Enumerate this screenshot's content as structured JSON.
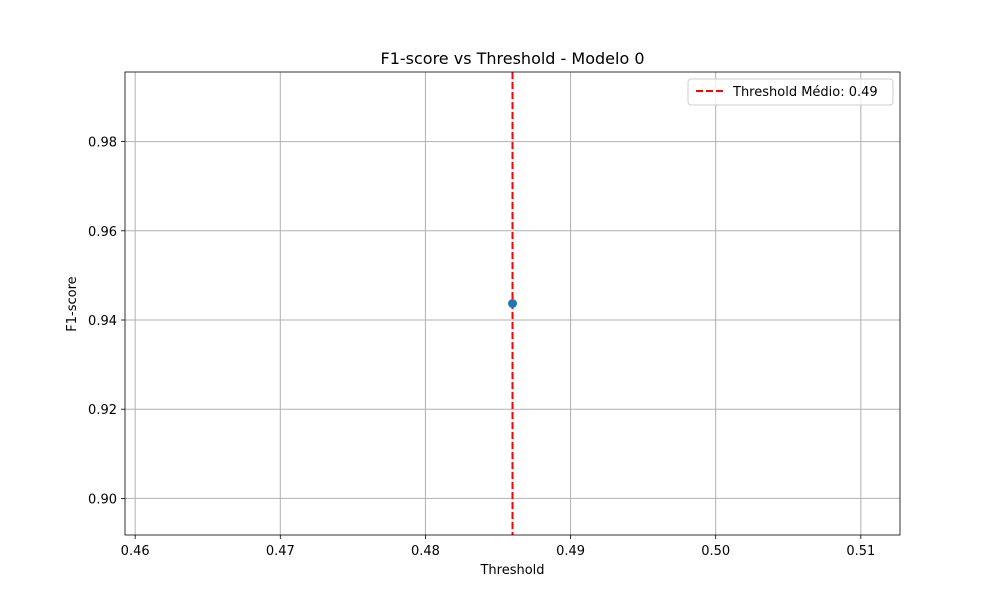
{
  "chart_data": {
    "type": "scatter",
    "title": "F1-score vs Threshold - Modelo 0",
    "xlabel": "Threshold",
    "ylabel": "F1-score",
    "xlim": [
      0.4593,
      0.5127
    ],
    "ylim": [
      0.8918,
      0.9956
    ],
    "xticks": [
      0.46,
      0.47,
      0.48,
      0.49,
      0.5,
      0.51
    ],
    "xtick_labels": [
      "0.46",
      "0.47",
      "0.48",
      "0.49",
      "0.50",
      "0.51"
    ],
    "yticks": [
      0.9,
      0.92,
      0.94,
      0.96,
      0.98
    ],
    "ytick_labels": [
      "0.90",
      "0.92",
      "0.94",
      "0.96",
      "0.98"
    ],
    "grid": true,
    "series": [
      {
        "points": [
          {
            "x": 0.486,
            "y": 0.9437
          }
        ],
        "color": "#1f77b4"
      }
    ],
    "vline": {
      "x": 0.486,
      "color": "#ff0000",
      "style": "dashed",
      "label": "Threshold Médio: 0.49"
    },
    "legend": {
      "position": "top-right",
      "entries": [
        "Threshold Médio: 0.49"
      ]
    }
  }
}
